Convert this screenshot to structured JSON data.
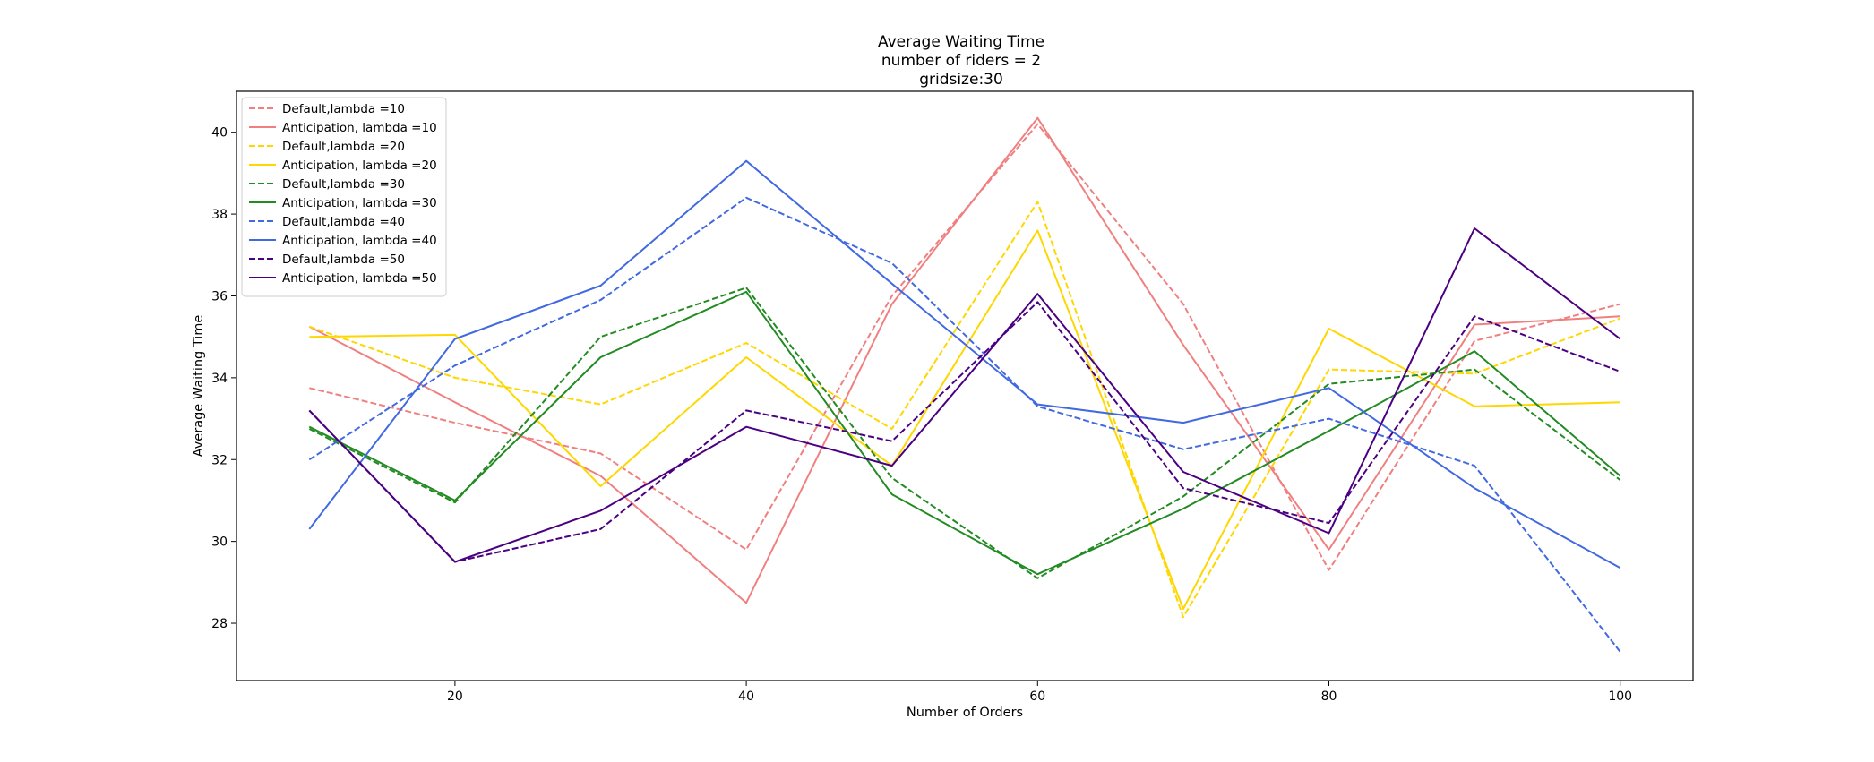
{
  "chart_data": {
    "type": "line",
    "title": [
      "Average Waiting Time",
      "number of riders = 2",
      "gridsize:30"
    ],
    "xlabel": "Number of Orders",
    "ylabel": "Average Waiting Time",
    "xlim": [
      5,
      105
    ],
    "ylim": [
      26.6,
      41.0
    ],
    "xticks": [
      20,
      40,
      60,
      80,
      100
    ],
    "yticks": [
      28,
      30,
      32,
      34,
      36,
      38,
      40
    ],
    "grid": false,
    "legend_position": "top-left",
    "x": [
      10,
      20,
      30,
      40,
      50,
      60,
      70,
      80,
      90,
      100
    ],
    "series": [
      {
        "name": "Default,lambda =10",
        "color": "#f08080",
        "style": "dashed",
        "values": [
          33.75,
          32.9,
          32.15,
          29.8,
          36.0,
          40.2,
          35.8,
          29.3,
          34.9,
          35.8
        ]
      },
      {
        "name": "Anticipation, lambda =10",
        "color": "#f08080",
        "style": "solid",
        "values": [
          35.25,
          33.4,
          31.6,
          28.5,
          35.8,
          40.35,
          34.8,
          29.8,
          35.3,
          35.5
        ]
      },
      {
        "name": "Default,lambda =20",
        "color": "#ffd700",
        "style": "dashed",
        "values": [
          35.25,
          34.0,
          33.35,
          34.85,
          32.75,
          38.3,
          28.15,
          34.2,
          34.1,
          35.45
        ]
      },
      {
        "name": "Anticipation, lambda =20",
        "color": "#ffd700",
        "style": "solid",
        "values": [
          35.0,
          35.05,
          31.35,
          34.5,
          31.85,
          37.6,
          28.35,
          35.2,
          33.3,
          33.4
        ]
      },
      {
        "name": "Default,lambda =30",
        "color": "#228b22",
        "style": "dashed",
        "values": [
          32.75,
          30.95,
          35.0,
          36.2,
          31.55,
          29.1,
          31.1,
          33.85,
          34.2,
          31.5
        ]
      },
      {
        "name": "Anticipation, lambda =30",
        "color": "#228b22",
        "style": "solid",
        "values": [
          32.8,
          31.0,
          34.5,
          36.1,
          31.15,
          29.2,
          30.8,
          32.7,
          34.65,
          31.6
        ]
      },
      {
        "name": "Default,lambda =40",
        "color": "#4169e1",
        "style": "dashed",
        "values": [
          32.0,
          34.3,
          35.9,
          38.4,
          36.8,
          33.3,
          32.25,
          33.0,
          31.85,
          27.3
        ]
      },
      {
        "name": "Anticipation, lambda =40",
        "color": "#4169e1",
        "style": "solid",
        "values": [
          30.3,
          34.95,
          36.25,
          39.3,
          36.3,
          33.35,
          32.9,
          33.75,
          31.3,
          29.35
        ]
      },
      {
        "name": "Default,lambda =50",
        "color": "#4b0082",
        "style": "dashed",
        "values": [
          33.2,
          29.5,
          30.3,
          33.2,
          32.45,
          35.85,
          31.3,
          30.45,
          35.5,
          34.15
        ]
      },
      {
        "name": "Anticipation, lambda =50",
        "color": "#4b0082",
        "style": "solid",
        "values": [
          33.2,
          29.5,
          30.75,
          32.8,
          31.85,
          36.05,
          31.7,
          30.2,
          37.65,
          34.95
        ]
      }
    ]
  }
}
